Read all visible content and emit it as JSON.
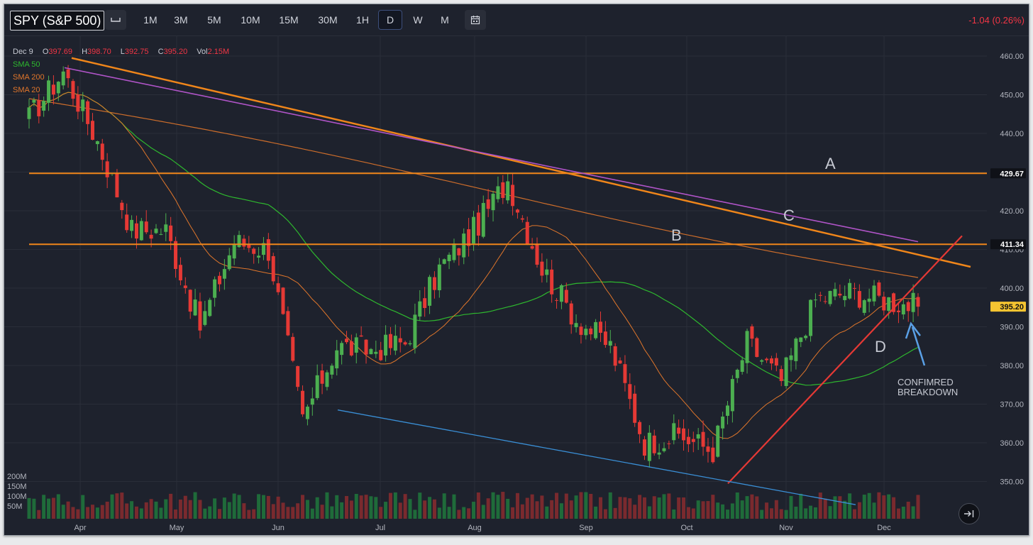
{
  "toolbar": {
    "symbol": "SPY (S&P 500)",
    "timeframes": [
      "1M",
      "3M",
      "5M",
      "10M",
      "15M",
      "30M",
      "1H",
      "D",
      "W",
      "M"
    ],
    "active_timeframe": "D",
    "change": "-1.04 (0.26%)"
  },
  "legend": {
    "date": "Dec 9",
    "open_label": "O",
    "open": "397.69",
    "high_label": "H",
    "high": "398.70",
    "low_label": "L",
    "low": "392.75",
    "close_label": "C",
    "close": "395.20",
    "vol_label": "Vol",
    "vol": "2.15M",
    "indicators": [
      "SMA 50",
      "SMA 200",
      "SMA 20"
    ]
  },
  "colors": {
    "up": "#26a69a",
    "up_candle": "#4caf50",
    "down": "#e53935",
    "sma50": "#2eb82e",
    "sma200": "#e0762b",
    "sma20": "#e0762b",
    "trendline": "#f0861a",
    "purple": "#b054c8",
    "red_line": "#e53935",
    "blue_line": "#3a8fd6",
    "price_tag": "#f5c431"
  },
  "chart_data": {
    "type": "candlestick",
    "symbol": "SPY",
    "ylim": [
      343,
      462
    ],
    "y_ticks": [
      460,
      450,
      440,
      430,
      420,
      410,
      400,
      390,
      380,
      370,
      360,
      350
    ],
    "x_labels": [
      "Apr",
      "May",
      "Jun",
      "Jul",
      "Aug",
      "Sep",
      "Oct",
      "Nov",
      "Dec"
    ],
    "volume_ticks": [
      "200M",
      "150M",
      "100M",
      "50M"
    ],
    "price_markers": [
      {
        "value": 429.67,
        "label": "429.67",
        "style": "horizontal"
      },
      {
        "value": 411.34,
        "label": "411.34",
        "style": "horizontal"
      },
      {
        "value": 395.2,
        "label": "395.20",
        "style": "last-price"
      }
    ],
    "annotations": [
      {
        "text": "A",
        "near": 429.67
      },
      {
        "text": "B",
        "near": 411.34
      },
      {
        "text": "C",
        "on": "descending resistance trendline"
      },
      {
        "text": "D",
        "on": "rising support trendline"
      },
      {
        "text": "CONFIMRED",
        "line2": "BREAKDOWN",
        "pointer": "up-arrow to last candles"
      }
    ],
    "candles_approx_close": [
      {
        "period": "late Mar",
        "close": 444
      },
      {
        "period": "early Apr",
        "close": 456
      },
      {
        "period": "mid Apr",
        "close": 438
      },
      {
        "period": "late Apr",
        "close": 415
      },
      {
        "period": "early May",
        "close": 415
      },
      {
        "period": "mid May",
        "close": 390
      },
      {
        "period": "late May",
        "close": 412
      },
      {
        "period": "early Jun",
        "close": 410
      },
      {
        "period": "mid Jun",
        "close": 366
      },
      {
        "period": "late Jun",
        "close": 385
      },
      {
        "period": "early Jul",
        "close": 384
      },
      {
        "period": "mid Jul",
        "close": 386
      },
      {
        "period": "late Jul",
        "close": 405
      },
      {
        "period": "early Aug",
        "close": 415
      },
      {
        "period": "mid Aug",
        "close": 428
      },
      {
        "period": "late Aug",
        "close": 405
      },
      {
        "period": "early Sep",
        "close": 392
      },
      {
        "period": "mid Sep",
        "close": 385
      },
      {
        "period": "late Sep",
        "close": 360
      },
      {
        "period": "early Oct",
        "close": 362
      },
      {
        "period": "mid Oct",
        "close": 358
      },
      {
        "period": "late Oct",
        "close": 386
      },
      {
        "period": "early Nov",
        "close": 376
      },
      {
        "period": "mid Nov",
        "close": 397
      },
      {
        "period": "late Nov",
        "close": 399
      },
      {
        "period": "early Dec",
        "close": 397
      },
      {
        "period": "Dec 9",
        "close": 395.2
      }
    ]
  }
}
